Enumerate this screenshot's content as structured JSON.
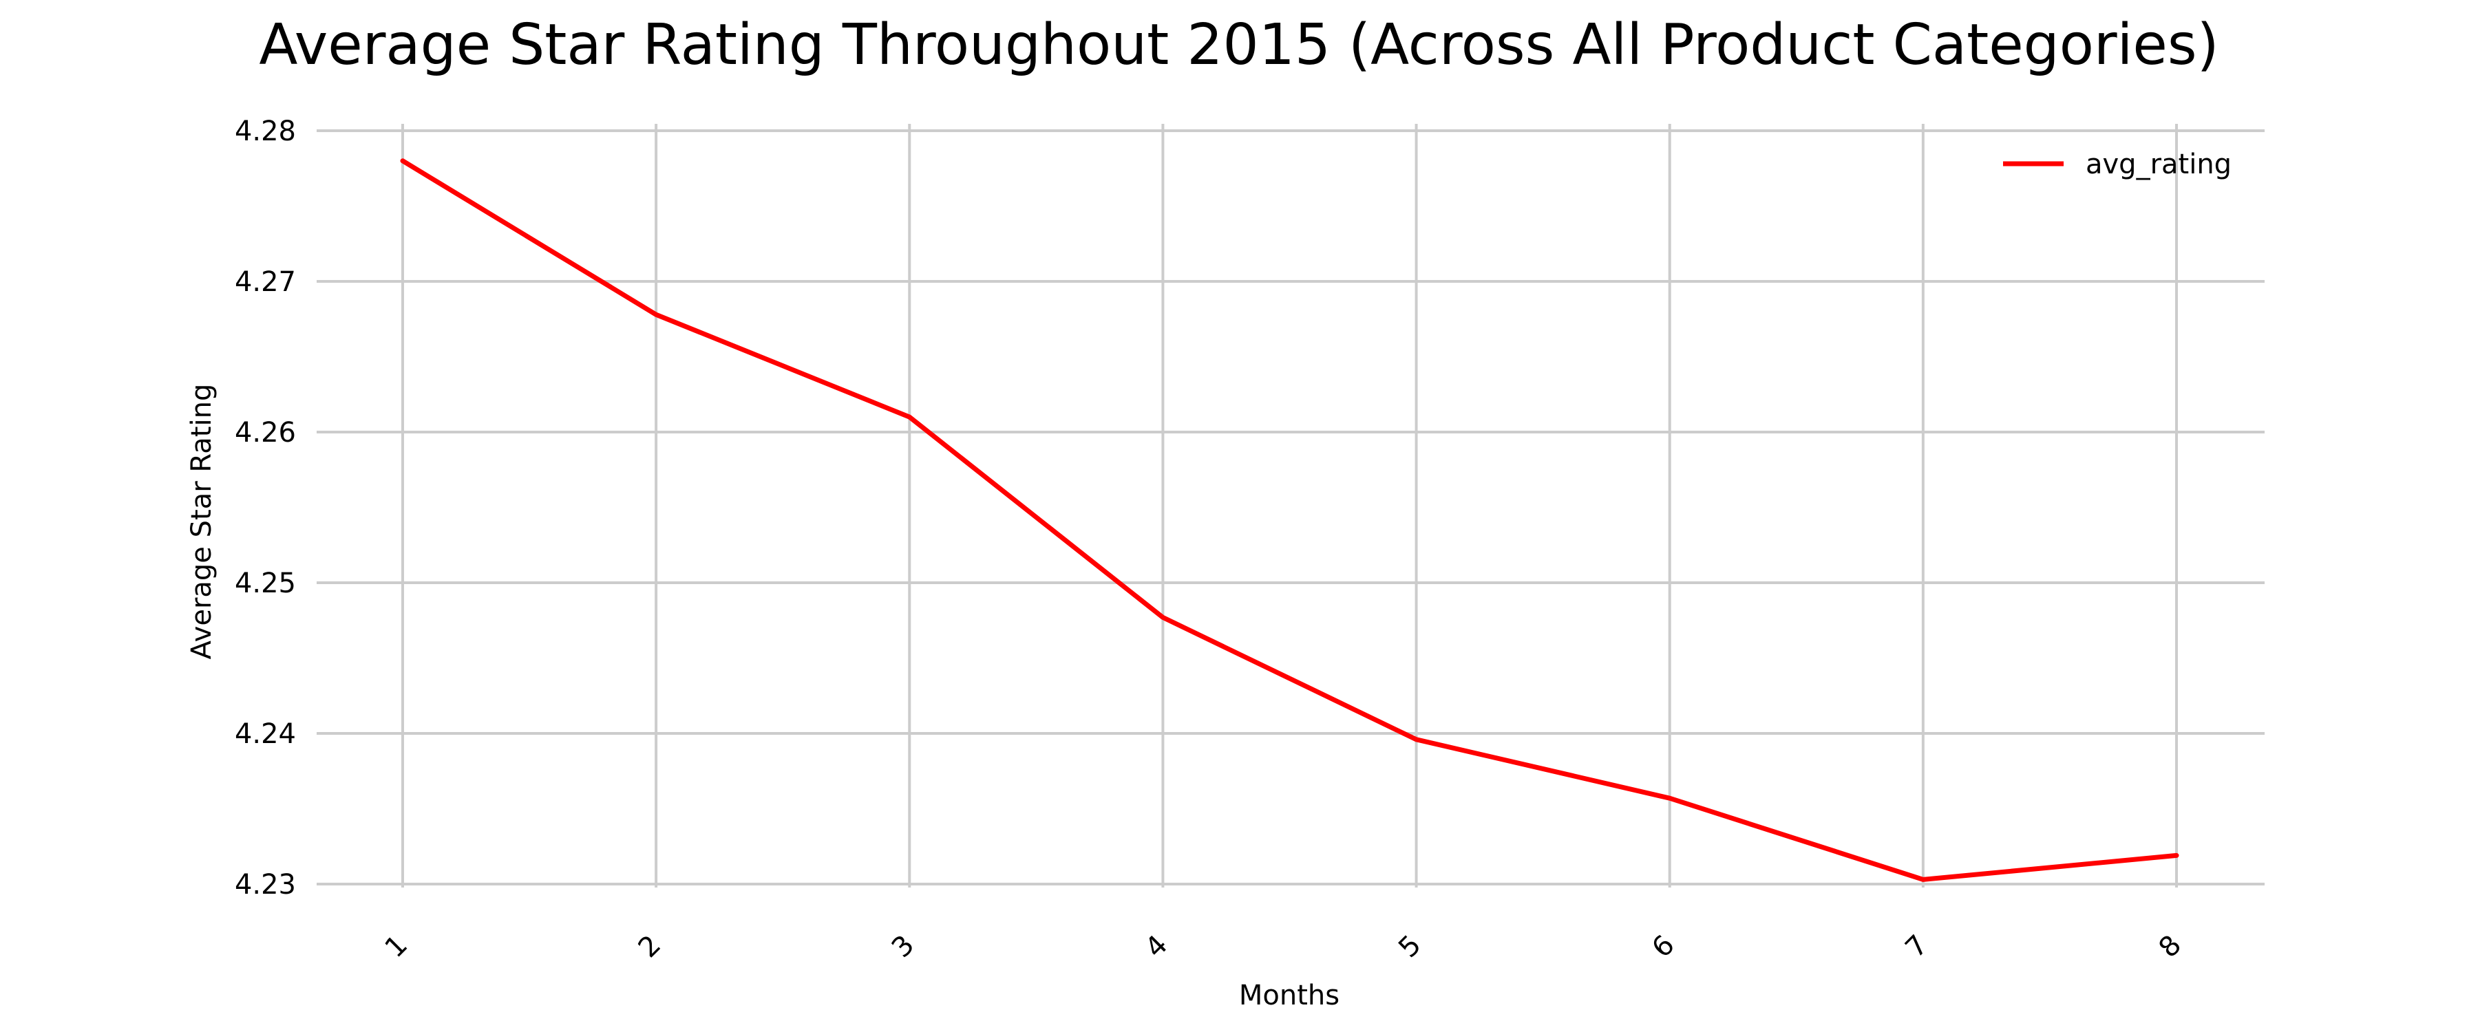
{
  "chart_data": {
    "type": "line",
    "title": "Average Star Rating Throughout 2015 (Across All Product Categories)",
    "xlabel": "Months",
    "ylabel": "Average Star Rating",
    "x": [
      1,
      2,
      3,
      4,
      5,
      6,
      7,
      8
    ],
    "x_tick_labels": [
      "1",
      "2",
      "3",
      "4",
      "5",
      "6",
      "7",
      "8"
    ],
    "y_ticks": [
      4.23,
      4.24,
      4.25,
      4.26,
      4.27,
      4.28
    ],
    "y_tick_labels": [
      "4.23",
      "4.24",
      "4.25",
      "4.26",
      "4.27",
      "4.28"
    ],
    "ylim": [
      4.23,
      4.28
    ],
    "xlim": [
      1,
      8
    ],
    "grid": true,
    "legend_position": "top-right",
    "series": [
      {
        "name": "avg_rating",
        "color": "#ff0000",
        "values": [
          4.278,
          4.2678,
          4.261,
          4.2477,
          4.2396,
          4.2357,
          4.2303,
          4.2319
        ]
      }
    ]
  }
}
